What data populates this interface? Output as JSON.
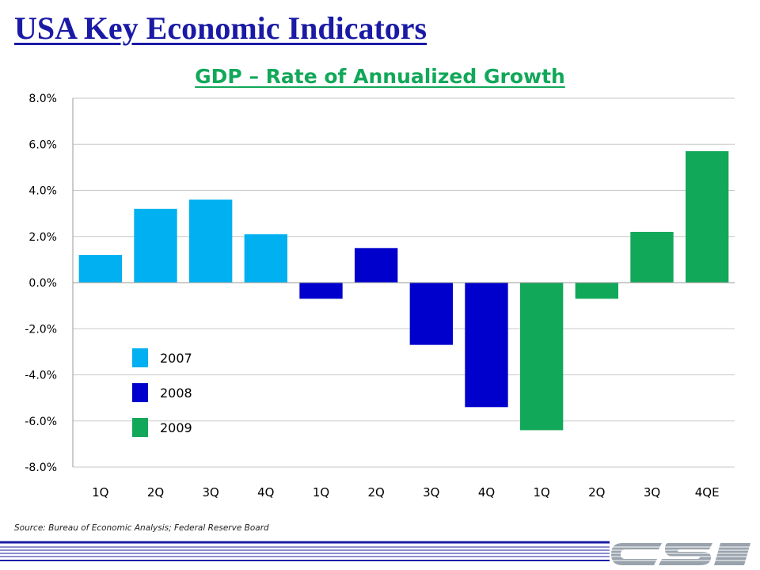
{
  "slide": {
    "title": "USA Key Economic Indicators",
    "source": "Source: Bureau of Economic Analysis; Federal Reserve Board",
    "logo_text": "CSI"
  },
  "colors": {
    "title": "#1a1aa6",
    "chart_title": "#12a85a",
    "year_2007": "#00b0f0",
    "year_2008": "#0000cc",
    "year_2009": "#12a85a",
    "logo": "#9aa3ad",
    "footer_line": "#1a1aa6"
  },
  "chart_data": {
    "type": "bar",
    "title": "GDP – Rate of Annualized Growth",
    "xlabel": "",
    "ylabel": "",
    "categories": [
      "1Q",
      "2Q",
      "3Q",
      "4Q",
      "1Q",
      "2Q",
      "3Q",
      "4Q",
      "1Q",
      "2Q",
      "3Q",
      "4QE"
    ],
    "values": [
      1.2,
      3.2,
      3.6,
      2.1,
      -0.7,
      1.5,
      -2.7,
      -5.4,
      -6.4,
      -0.7,
      2.2,
      5.7
    ],
    "groups": [
      "2007",
      "2007",
      "2007",
      "2007",
      "2008",
      "2008",
      "2008",
      "2008",
      "2009",
      "2009",
      "2009",
      "2009"
    ],
    "legend": [
      {
        "label": "2007",
        "color": "#00b0f0"
      },
      {
        "label": "2008",
        "color": "#0000cc"
      },
      {
        "label": "2009",
        "color": "#12a85a"
      }
    ],
    "ylim": [
      -8,
      8
    ],
    "yticks": [
      8,
      6,
      4,
      2,
      0,
      -2,
      -4,
      -6,
      -8
    ],
    "ytick_labels": [
      "8.0%",
      "6.0%",
      "4.0%",
      "2.0%",
      "0.0%",
      "-2.0%",
      "-4.0%",
      "-6.0%",
      "-8.0%"
    ],
    "grid": true,
    "legend_position": "lower-left"
  }
}
